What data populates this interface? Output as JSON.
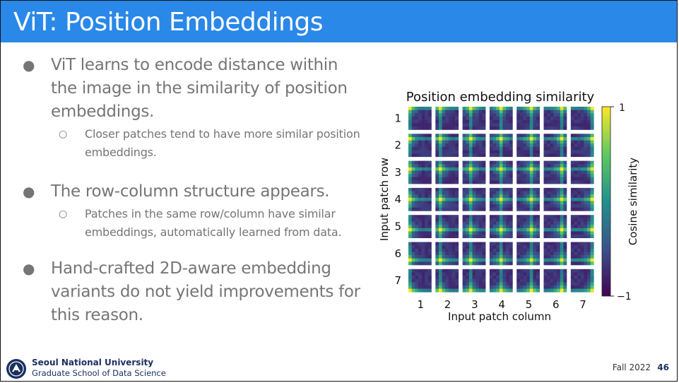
{
  "slide": {
    "title": "ViT: Position Embeddings",
    "bullets": [
      {
        "text": "ViT learns to encode distance within the image in the similarity of position embeddings.",
        "sub": [
          "Closer patches tend to have more similar position embeddings."
        ]
      },
      {
        "text": "The row-column structure appears.",
        "sub": [
          "Patches in the same row/column have similar embeddings, automatically learned from data."
        ]
      },
      {
        "text": "Hand-crafted 2D-aware embedding variants do not yield improvements for this reason.",
        "sub": []
      }
    ]
  },
  "chart_data": {
    "type": "heatmap",
    "title": "Position embedding similarity",
    "xlabel": "Input patch column",
    "ylabel": "Input patch row",
    "rows": [
      1,
      2,
      3,
      4,
      5,
      6,
      7
    ],
    "columns": [
      1,
      2,
      3,
      4,
      5,
      6,
      7
    ],
    "colorbar": {
      "label": "Cosine similarity",
      "min": -1,
      "max": 1,
      "tick_labels": [
        "1",
        "−1"
      ],
      "colormap": "viridis"
    },
    "values": "each tile is a 7x7 map of cosine similarity between the embedding of the patch at (row, column) and every other patch; highest at the patch's own row and column"
  },
  "footer": {
    "university": "Seoul National University",
    "school": "Graduate School of Data Science",
    "term": "Fall 2022",
    "page": "46"
  }
}
